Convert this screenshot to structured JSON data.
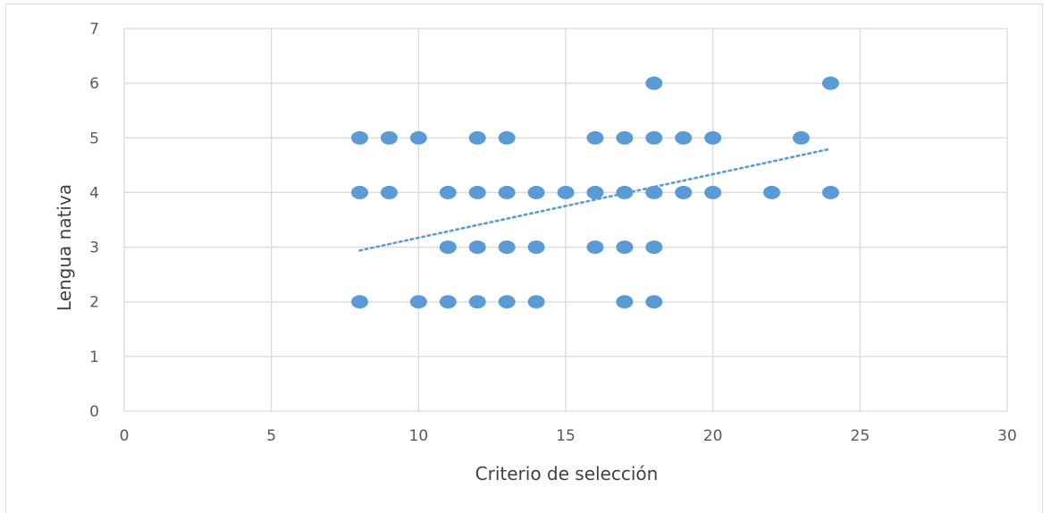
{
  "chart_data": {
    "type": "scatter",
    "title": "",
    "xlabel": "Criterio de selección",
    "ylabel": "Lengua nativa",
    "xlim": [
      0,
      30
    ],
    "ylim": [
      0,
      7
    ],
    "xticks": [
      0,
      5,
      10,
      15,
      20,
      25,
      30
    ],
    "yticks": [
      0,
      1,
      2,
      3,
      4,
      5,
      6,
      7
    ],
    "grid": true,
    "legend": "none",
    "series": [
      {
        "color": "#5b9bd5",
        "marker": "circle",
        "points": [
          [
            8,
            5
          ],
          [
            9,
            5
          ],
          [
            10,
            5
          ],
          [
            12,
            5
          ],
          [
            13,
            5
          ],
          [
            16,
            5
          ],
          [
            17,
            5
          ],
          [
            18,
            5
          ],
          [
            19,
            5
          ],
          [
            20,
            5
          ],
          [
            23,
            5
          ],
          [
            18,
            6
          ],
          [
            24,
            6
          ],
          [
            8,
            4
          ],
          [
            9,
            4
          ],
          [
            11,
            4
          ],
          [
            12,
            4
          ],
          [
            13,
            4
          ],
          [
            14,
            4
          ],
          [
            15,
            4
          ],
          [
            16,
            4
          ],
          [
            17,
            4
          ],
          [
            18,
            4
          ],
          [
            19,
            4
          ],
          [
            20,
            4
          ],
          [
            22,
            4
          ],
          [
            24,
            4
          ],
          [
            11,
            3
          ],
          [
            12,
            3
          ],
          [
            13,
            3
          ],
          [
            14,
            3
          ],
          [
            16,
            3
          ],
          [
            17,
            3
          ],
          [
            18,
            3
          ],
          [
            8,
            2
          ],
          [
            10,
            2
          ],
          [
            11,
            2
          ],
          [
            12,
            2
          ],
          [
            13,
            2
          ],
          [
            14,
            2
          ],
          [
            17,
            2
          ],
          [
            18,
            2
          ]
        ]
      }
    ],
    "trendline": {
      "style": "dotted",
      "color": "#5b9bd5",
      "from": [
        8,
        2.94
      ],
      "to": [
        24,
        4.8
      ]
    }
  }
}
